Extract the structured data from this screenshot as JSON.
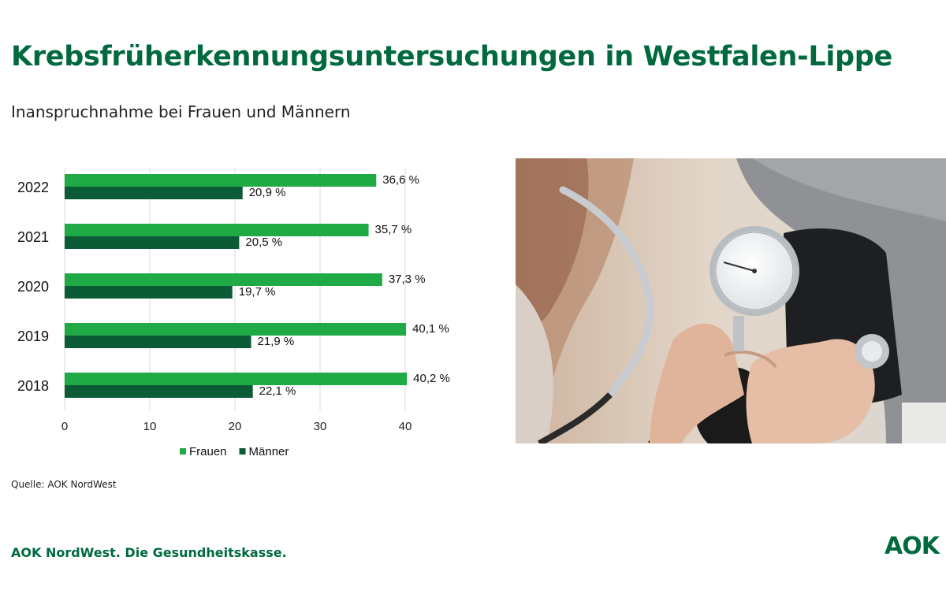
{
  "title": "Krebsfrüherkennungsuntersuchungen in Westfalen-Lippe",
  "subtitle": "Inanspruchnahme bei Frauen und Männern",
  "source": "Quelle: AOK NordWest",
  "footer": "AOK NordWest. Die Gesundheitskasse.",
  "logo": "AOK",
  "colors": {
    "brand": "#006a3e",
    "frauen": "#1faa45",
    "maenner": "#0b5b36"
  },
  "photo": {
    "icon": "blood-pressure-measurement-photo"
  },
  "chart_data": {
    "type": "bar",
    "orientation": "horizontal",
    "categories": [
      "2022",
      "2021",
      "2020",
      "2019",
      "2018"
    ],
    "series": [
      {
        "name": "Frauen",
        "values": [
          36.6,
          35.7,
          37.3,
          40.1,
          40.2
        ],
        "labels": [
          "36,6 %",
          "35,7 %",
          "37,3 %",
          "40,1 %",
          "40,2 %"
        ],
        "color": "#1faa45"
      },
      {
        "name": "Männer",
        "values": [
          20.9,
          20.5,
          19.7,
          21.9,
          22.1
        ],
        "labels": [
          "20,9 %",
          "20,5 %",
          "19,7 %",
          "21,9 %",
          "22,1 %"
        ],
        "color": "#0b5b36"
      }
    ],
    "xlim": [
      0,
      40
    ],
    "xticks": [
      "0",
      "10",
      "20",
      "30",
      "40"
    ],
    "grid": true,
    "legend": "bottom"
  }
}
